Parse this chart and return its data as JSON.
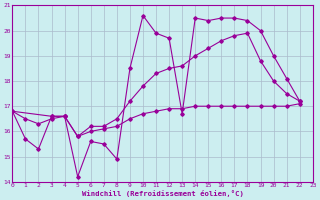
{
  "xlabel": "Windchill (Refroidissement éolien,°C)",
  "bg_color": "#cceef0",
  "line_color": "#990099",
  "grid_color": "#aabbcc",
  "xlim": [
    0,
    23
  ],
  "ylim": [
    14,
    21
  ],
  "yticks": [
    14,
    15,
    16,
    17,
    18,
    19,
    20,
    21
  ],
  "xticks": [
    0,
    1,
    2,
    3,
    4,
    5,
    6,
    7,
    8,
    9,
    10,
    11,
    12,
    13,
    14,
    15,
    16,
    17,
    18,
    19,
    20,
    21,
    22,
    23
  ],
  "line1_x": [
    0,
    1,
    2,
    3,
    4,
    5,
    6,
    7,
    8,
    9,
    10,
    11,
    12,
    13,
    14,
    15,
    16,
    17,
    18,
    19,
    20,
    21,
    22
  ],
  "line1_y": [
    16.8,
    15.7,
    15.3,
    16.6,
    16.6,
    14.2,
    15.6,
    15.5,
    14.9,
    18.5,
    20.6,
    19.9,
    19.7,
    16.7,
    20.5,
    20.4,
    20.5,
    20.5,
    20.4,
    20.0,
    19.0,
    18.1,
    17.2
  ],
  "line2_x": [
    0,
    3,
    4,
    5,
    6,
    7,
    8,
    9,
    10,
    11,
    12,
    13,
    14,
    15,
    16,
    17,
    18,
    19,
    20,
    21,
    22
  ],
  "line2_y": [
    16.8,
    16.6,
    16.6,
    15.8,
    16.2,
    16.2,
    16.5,
    17.2,
    17.8,
    18.3,
    18.5,
    18.6,
    19.0,
    19.3,
    19.6,
    19.8,
    19.9,
    18.8,
    18.0,
    17.5,
    17.2
  ],
  "line3_x": [
    0,
    1,
    2,
    3,
    4,
    5,
    6,
    7,
    8,
    9,
    10,
    11,
    12,
    13,
    14,
    15,
    16,
    17,
    18,
    19,
    20,
    21,
    22
  ],
  "line3_y": [
    16.8,
    16.5,
    16.3,
    16.5,
    16.6,
    15.8,
    16.0,
    16.1,
    16.2,
    16.5,
    16.7,
    16.8,
    16.9,
    16.9,
    17.0,
    17.0,
    17.0,
    17.0,
    17.0,
    17.0,
    17.0,
    17.0,
    17.1
  ]
}
